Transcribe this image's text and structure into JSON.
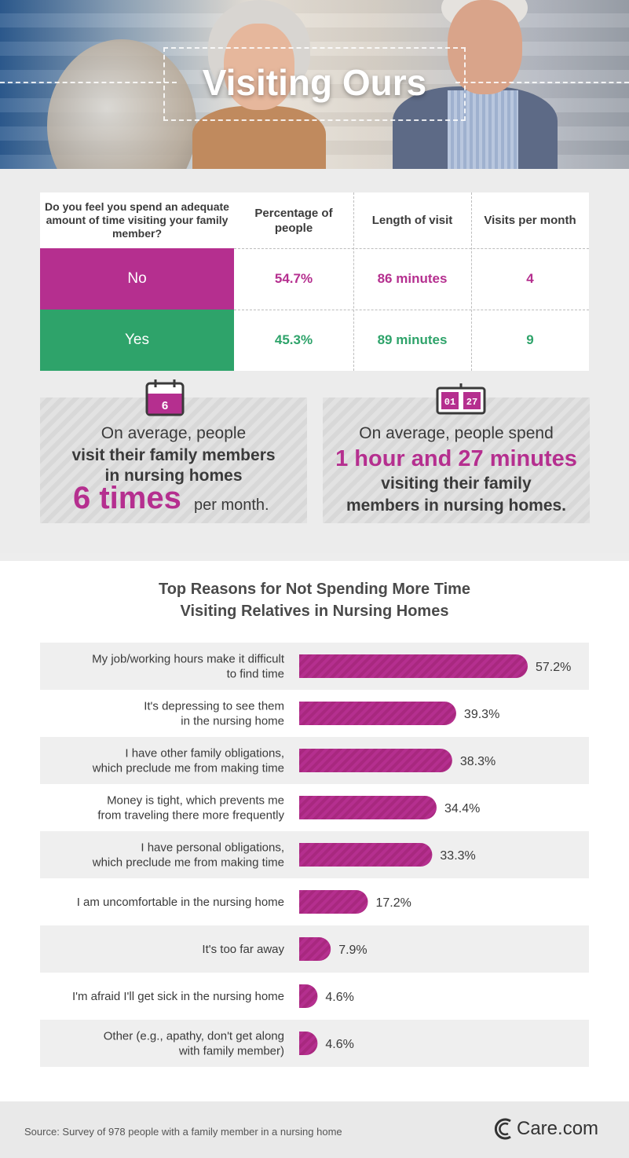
{
  "header": {
    "title": "Visiting Ours"
  },
  "table": {
    "question": "Do you feel you spend an adequate amount of time visiting your family member?",
    "col_percentage": "Percentage of people",
    "col_length": "Length of visit",
    "col_visits": "Visits per month",
    "rows": [
      {
        "label": "No",
        "percentage": "54.7%",
        "length": "86 minutes",
        "visits": "4",
        "color": "#b52f8f"
      },
      {
        "label": "Yes",
        "percentage": "45.3%",
        "length": "89 minutes",
        "visits": "9",
        "color": "#2ea36a"
      }
    ]
  },
  "card_visits": {
    "icon_number": "6",
    "line1": "On average, people",
    "line2": "visit their family members",
    "line3": "in nursing homes",
    "big": "6 times",
    "small": "per month."
  },
  "card_time": {
    "icon_hours": "01",
    "icon_minutes": "27",
    "line1": "On average, people spend",
    "line2": "1 hour and 27 minutes",
    "line3": "visiting their family",
    "line4": "members in nursing homes."
  },
  "chart_data": {
    "type": "bar",
    "orientation": "horizontal",
    "title_line1": "Top Reasons for Not Spending More Time",
    "title_line2": "Visiting Relatives in Nursing Homes",
    "categories": [
      [
        "My job/working hours make it difficult",
        "to find time"
      ],
      [
        "It's depressing to see them",
        "in the nursing home"
      ],
      [
        "I have other family obligations,",
        "which preclude me from making time"
      ],
      [
        "Money is tight, which prevents me",
        "from traveling there more frequently"
      ],
      [
        "I have personal obligations,",
        "which preclude me from making time"
      ],
      [
        "I am uncomfortable in the nursing home"
      ],
      [
        "It's too far away"
      ],
      [
        "I'm afraid I'll get sick in the nursing home"
      ],
      [
        "Other (e.g., apathy, don't get along",
        "with family member)"
      ]
    ],
    "values": [
      57.2,
      39.3,
      38.3,
      34.4,
      33.3,
      17.2,
      7.9,
      4.6,
      4.6
    ],
    "value_labels": [
      "57.2%",
      "39.3%",
      "38.3%",
      "34.4%",
      "33.3%",
      "17.2%",
      "7.9%",
      "4.6%",
      "4.6%"
    ],
    "bar_color": "#b52f8f",
    "xlim": [
      0,
      60
    ]
  },
  "footer": {
    "source": "Source: Survey of 978 people with a family member in a nursing home",
    "logo": "Care.com"
  }
}
